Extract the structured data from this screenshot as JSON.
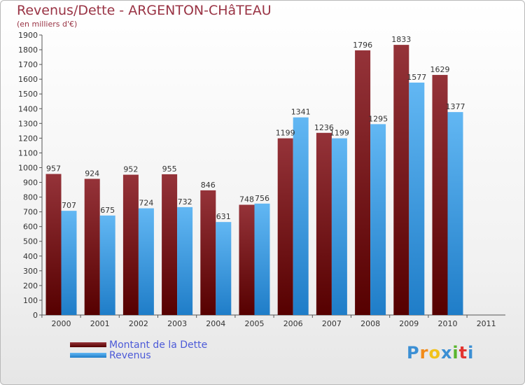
{
  "header": {
    "title": "Revenus/Dette - ARGENTON-CHâTEAU",
    "subtitle": "(en milliers d'€)"
  },
  "legend": {
    "items": [
      {
        "label": "Montant de la Dette",
        "color": "#6b0a0a"
      },
      {
        "label": "Revenus",
        "color": "#3a9ee6"
      }
    ]
  },
  "logo": {
    "letters": [
      "P",
      "r",
      "o",
      "x",
      "i",
      "t",
      "i"
    ],
    "colors": [
      "#3b8fd4",
      "#f28b1a",
      "#f2c21a",
      "#3b8fd4",
      "#59b52d",
      "#e3342f",
      "#3b8fd4"
    ]
  },
  "chart_data": {
    "type": "bar",
    "title": "Revenus/Dette - ARGENTON-CHâTEAU",
    "subtitle": "(en milliers d'€)",
    "xlabel": "",
    "ylabel": "",
    "ylim": [
      0,
      1900
    ],
    "ytick_step": 100,
    "grid": false,
    "legend_position": "bottom-left",
    "categories": [
      "2000",
      "2001",
      "2002",
      "2003",
      "2004",
      "2005",
      "2006",
      "2007",
      "2008",
      "2009",
      "2010",
      "2011"
    ],
    "series": [
      {
        "name": "Montant de la Dette",
        "color": "#6b0a0a",
        "values": [
          957,
          924,
          952,
          955,
          846,
          748,
          1199,
          1236,
          1796,
          1833,
          1629,
          null
        ]
      },
      {
        "name": "Revenus",
        "color": "#3a9ee6",
        "values": [
          707,
          675,
          724,
          732,
          631,
          756,
          1341,
          1199,
          1295,
          1577,
          1377,
          null
        ]
      }
    ]
  }
}
